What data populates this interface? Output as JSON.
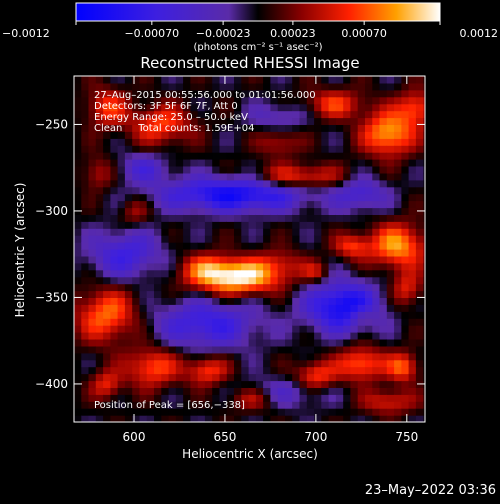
{
  "chart_data": {
    "type": "heatmap",
    "title": "Reconstructed RHESSI Image",
    "xlabel": "Heliocentric X (arcsec)",
    "ylabel": "Heliocentric Y (arcsec)",
    "xlim": [
      567,
      760
    ],
    "ylim": [
      -422,
      -222
    ],
    "x_ticks": [
      600,
      650,
      700,
      750
    ],
    "y_ticks": [
      -400,
      -350,
      -300,
      -250
    ],
    "x_tick_labels": [
      "600",
      "650",
      "700",
      "750"
    ],
    "y_tick_labels": [
      "−400",
      "−350",
      "−300",
      "−250"
    ],
    "colorbar": {
      "min": -0.0012,
      "max": 0.0012,
      "ticks": [
        -0.0012,
        -0.0007,
        -0.00023,
        0.00023,
        0.0007,
        0.0012
      ],
      "tick_labels": [
        "−0.0012",
        "−0.00070",
        "−0.00023",
        "0.00023",
        "0.00070",
        "0.0012"
      ],
      "unit_label": "(photons cm⁻² s⁻¹ asec⁻²)"
    },
    "annotations": [
      "27–Aug–2015 00:55:56.000 to 01:01:56.000",
      "Detectors: 3F 5F 6F 7F, Att 0",
      "Energy Range: 25.0 – 50.0 keV",
      "Clean     Total counts: 1.59E+04"
    ],
    "peak_label": "Position of Peak = [656,−338]",
    "peak": {
      "x": 656,
      "y": -338
    },
    "blobs": [
      {
        "x": 656,
        "y": -338,
        "sx": 17,
        "sy": 7,
        "a": 1.0
      },
      {
        "x": 640,
        "y": -332,
        "sx": 10,
        "sy": 6,
        "a": 0.35
      },
      {
        "x": 680,
        "y": -330,
        "sx": 10,
        "sy": 6,
        "a": 0.3
      },
      {
        "x": 740,
        "y": -255,
        "sx": 10,
        "sy": 9,
        "a": 0.8
      },
      {
        "x": 755,
        "y": -240,
        "sx": 7,
        "sy": 7,
        "a": 0.55
      },
      {
        "x": 710,
        "y": -238,
        "sx": 12,
        "sy": 6,
        "a": 0.5
      },
      {
        "x": 690,
        "y": -280,
        "sx": 18,
        "sy": 5,
        "a": 0.55
      },
      {
        "x": 615,
        "y": -250,
        "sx": 12,
        "sy": 8,
        "a": 0.55
      },
      {
        "x": 585,
        "y": -240,
        "sx": 8,
        "sy": 8,
        "a": 0.5
      },
      {
        "x": 580,
        "y": -278,
        "sx": 6,
        "sy": 7,
        "a": 0.35
      },
      {
        "x": 600,
        "y": -300,
        "sx": 6,
        "sy": 6,
        "a": 0.3
      },
      {
        "x": 680,
        "y": -260,
        "sx": 8,
        "sy": 6,
        "a": 0.35
      },
      {
        "x": 745,
        "y": -320,
        "sx": 11,
        "sy": 9,
        "a": 0.75
      },
      {
        "x": 720,
        "y": -320,
        "sx": 7,
        "sy": 5,
        "a": 0.5
      },
      {
        "x": 700,
        "y": -335,
        "sx": 5,
        "sy": 4,
        "a": 0.35
      },
      {
        "x": 750,
        "y": -345,
        "sx": 6,
        "sy": 7,
        "a": 0.45
      },
      {
        "x": 585,
        "y": -360,
        "sx": 12,
        "sy": 11,
        "a": 0.65
      },
      {
        "x": 610,
        "y": -390,
        "sx": 10,
        "sy": 8,
        "a": 0.6
      },
      {
        "x": 585,
        "y": -400,
        "sx": 6,
        "sy": 6,
        "a": 0.45
      },
      {
        "x": 640,
        "y": -392,
        "sx": 8,
        "sy": 6,
        "a": 0.55
      },
      {
        "x": 665,
        "y": -408,
        "sx": 10,
        "sy": 5,
        "a": 0.45
      },
      {
        "x": 700,
        "y": -395,
        "sx": 8,
        "sy": 6,
        "a": 0.55
      },
      {
        "x": 725,
        "y": -388,
        "sx": 9,
        "sy": 7,
        "a": 0.65
      },
      {
        "x": 748,
        "y": -390,
        "sx": 6,
        "sy": 6,
        "a": 0.6
      },
      {
        "x": 740,
        "y": -410,
        "sx": 10,
        "sy": 5,
        "a": 0.45
      },
      {
        "x": 725,
        "y": -360,
        "sx": 5,
        "sy": 4,
        "a": 0.3
      },
      {
        "x": 655,
        "y": -290,
        "sx": 28,
        "sy": 7,
        "a": -0.85
      },
      {
        "x": 715,
        "y": -355,
        "sx": 14,
        "sy": 10,
        "a": -0.9
      },
      {
        "x": 640,
        "y": -365,
        "sx": 20,
        "sy": 10,
        "a": -0.6
      },
      {
        "x": 595,
        "y": -325,
        "sx": 14,
        "sy": 10,
        "a": -0.55
      },
      {
        "x": 725,
        "y": -290,
        "sx": 10,
        "sy": 7,
        "a": -0.45
      },
      {
        "x": 680,
        "y": -405,
        "sx": 18,
        "sy": 6,
        "a": -0.35
      },
      {
        "x": 605,
        "y": -275,
        "sx": 10,
        "sy": 6,
        "a": -0.4
      },
      {
        "x": 680,
        "y": -245,
        "sx": 12,
        "sy": 6,
        "a": -0.3
      }
    ]
  },
  "footer": {
    "timestamp": "23–May–2022 03:36"
  }
}
